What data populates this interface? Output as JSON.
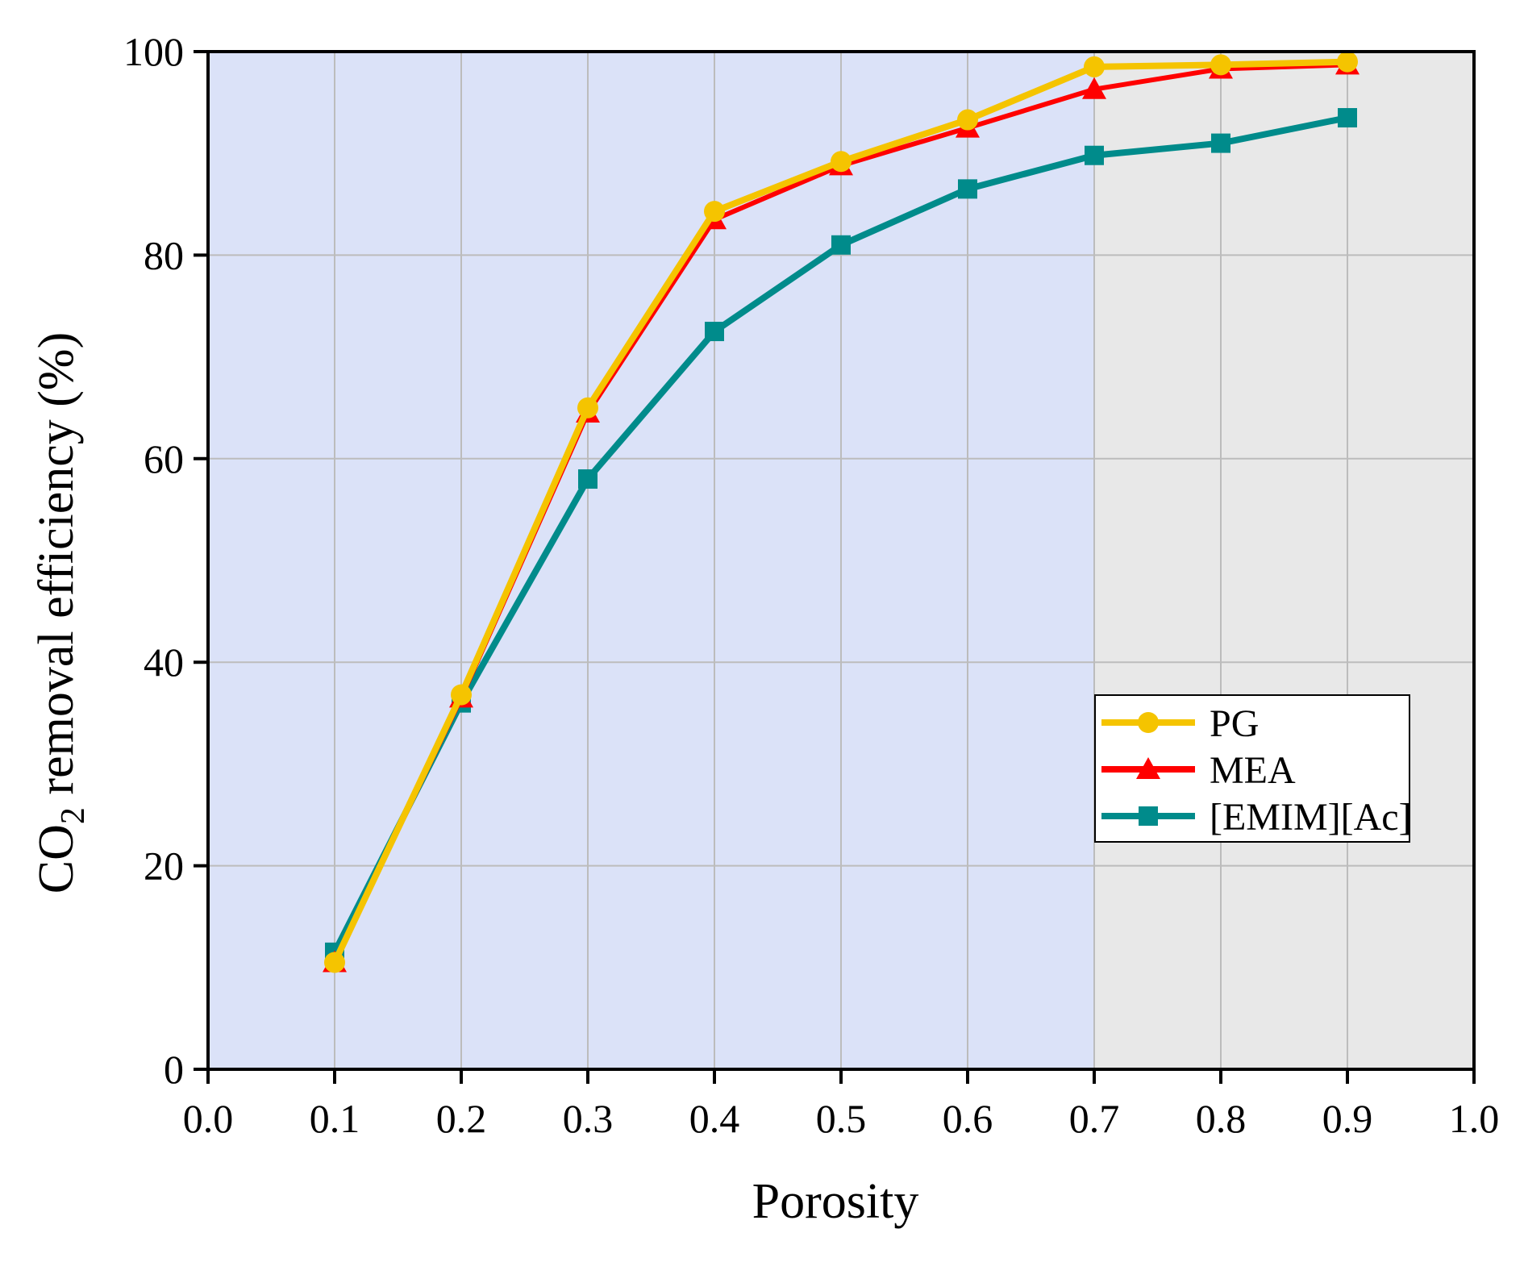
{
  "chart_data": {
    "type": "line",
    "title": "",
    "xlabel": "Porosity",
    "ylabel_main": "CO",
    "ylabel_sub": "2",
    "ylabel_rest": " removal efficiency (%)",
    "xlim": [
      0.0,
      1.0
    ],
    "ylim": [
      0,
      100
    ],
    "xticks": [
      "0.0",
      "0.1",
      "0.2",
      "0.3",
      "0.4",
      "0.5",
      "0.6",
      "0.7",
      "0.8",
      "0.9",
      "1.0"
    ],
    "yticks": [
      "0",
      "20",
      "40",
      "60",
      "80",
      "100"
    ],
    "grid": true,
    "legend_position": "center-right",
    "background_regions": [
      {
        "x_from": 0.0,
        "x_to": 0.7,
        "color": "#dbe2f8"
      },
      {
        "x_from": 0.7,
        "x_to": 1.0,
        "color": "#e8e8e8"
      }
    ],
    "x": [
      0.1,
      0.2,
      0.3,
      0.4,
      0.5,
      0.6,
      0.7,
      0.8,
      0.9
    ],
    "series": [
      {
        "name": "[EMIM][Ac]",
        "color": "#008b8b",
        "marker": "square",
        "values": [
          11.5,
          36.0,
          58.0,
          72.5,
          81.0,
          86.5,
          89.8,
          91.0,
          93.5
        ]
      },
      {
        "name": "MEA",
        "color": "#ff0000",
        "marker": "triangle",
        "values": [
          10.5,
          36.5,
          64.5,
          83.5,
          88.8,
          92.5,
          96.3,
          98.3,
          98.7
        ]
      },
      {
        "name": "PG",
        "color": "#f5c400",
        "marker": "circle",
        "values": [
          10.5,
          36.8,
          65.0,
          84.3,
          89.2,
          93.3,
          98.5,
          98.7,
          99.0
        ]
      }
    ],
    "legend_order": [
      "PG",
      "MEA",
      "[EMIM][Ac]"
    ]
  }
}
